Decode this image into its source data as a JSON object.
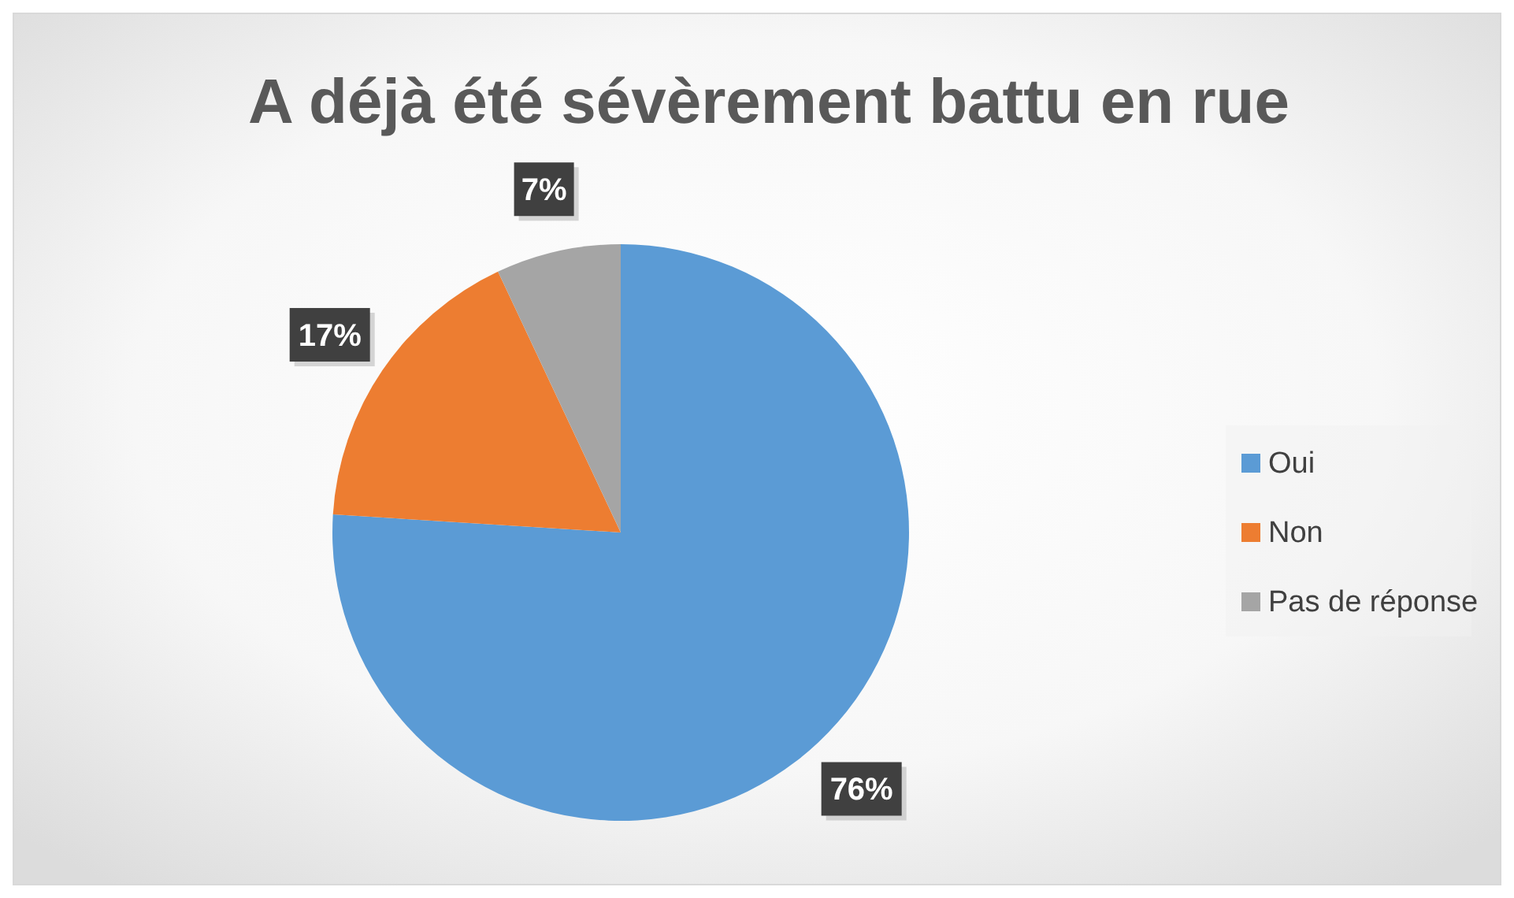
{
  "chart_data": {
    "type": "pie",
    "title": "A déjà été sévèrement battu en rue",
    "categories": [
      "Oui",
      "Non",
      "Pas de réponse"
    ],
    "values": [
      76,
      17,
      7
    ],
    "colors": [
      "#5b9bd5",
      "#ed7d31",
      "#a5a5a5"
    ],
    "value_labels": [
      "76%",
      "17%",
      "7%"
    ],
    "legend": "right"
  }
}
